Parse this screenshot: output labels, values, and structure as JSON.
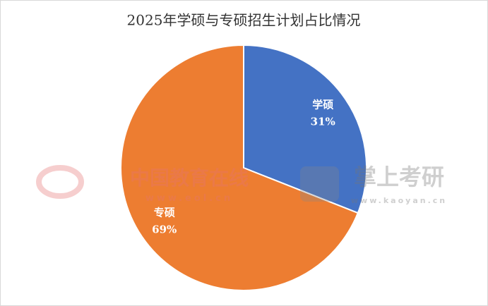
{
  "chart_data": {
    "type": "pie",
    "title": "2025年学硕与专硕招生计划占比情况",
    "categories": [
      "学硕",
      "专硕"
    ],
    "values": [
      31,
      69
    ],
    "value_labels": [
      "31%",
      "69%"
    ],
    "colors": [
      "#4472c4",
      "#ed7d31"
    ]
  },
  "watermarks": [
    "中国教育在线",
    "www.eol.cn",
    "掌上考研",
    "www.kaoyan.cn"
  ]
}
